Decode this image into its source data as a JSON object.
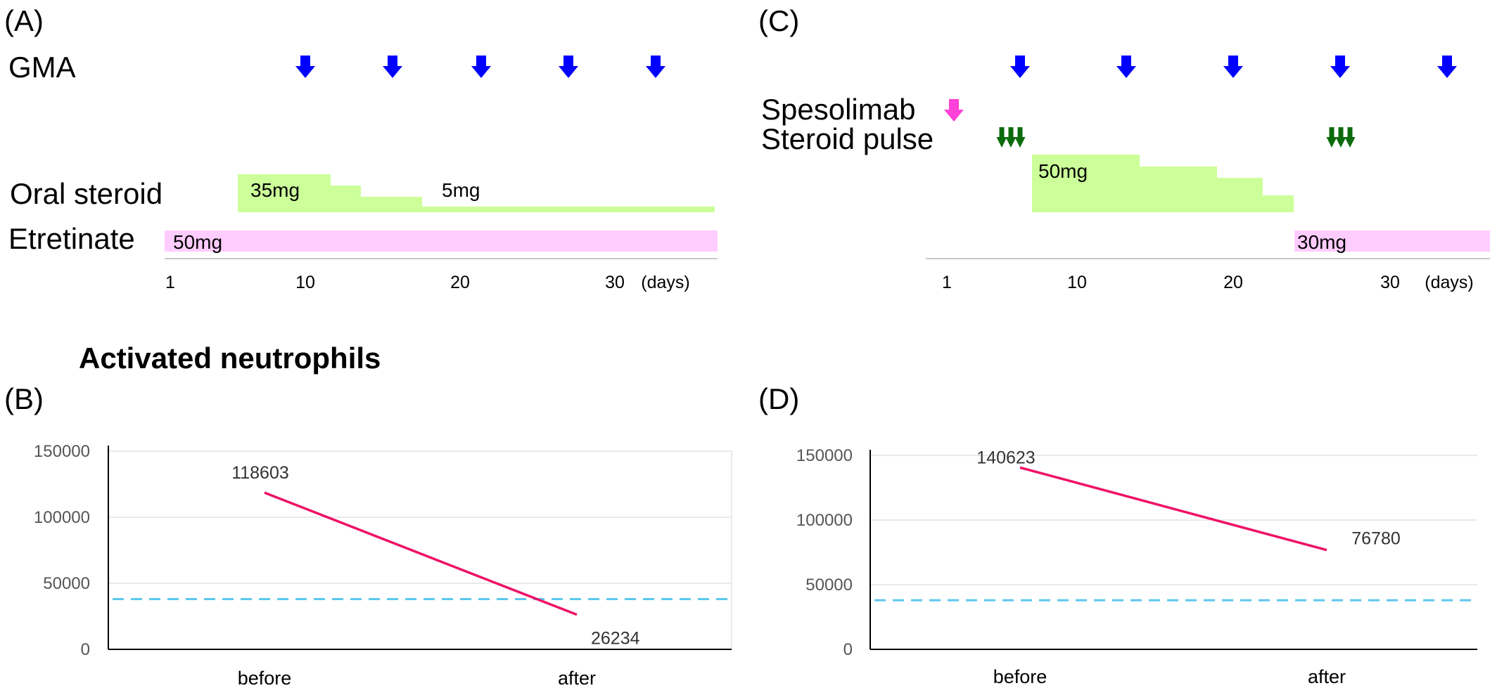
{
  "colors": {
    "gma_arrow": "#0000ff",
    "spesolimab_arrow": "#ff40d9",
    "steroid_pulse_arrow": "#0b6b0b",
    "oral_steroid": "#ccff99",
    "etretinate": "#ffccff",
    "line": "#ee1166",
    "threshold": "#5bc8ee"
  },
  "panel_a": {
    "label": "(A)",
    "gma_label": "GMA",
    "oral_steroid_label": "Oral steroid",
    "etretinate_label": "Etretinate",
    "oral_steroid_dose_1": "35mg",
    "oral_steroid_dose_2": "5mg",
    "etretinate_dose": "50mg",
    "ticks": [
      "1",
      "10",
      "20",
      "30"
    ],
    "unit": "(days)"
  },
  "panel_c": {
    "label": "(C)",
    "spesolimab_label": "Spesolimab",
    "steroid_pulse_label": "Steroid pulse",
    "oral_steroid_dose": "50mg",
    "etretinate_dose": "30mg",
    "ticks": [
      "1",
      "10",
      "20",
      "30"
    ],
    "unit": "(days)"
  },
  "section_title": "Activated neutrophils",
  "panel_b": {
    "label": "(B)"
  },
  "panel_d": {
    "label": "(D)"
  },
  "chart_data": [
    {
      "type": "line",
      "panel": "(B)",
      "categories": [
        "before",
        "after"
      ],
      "values": [
        118603,
        26234
      ],
      "ylim": [
        0,
        150000
      ],
      "yticks": [
        "0",
        "50000",
        "100000",
        "150000"
      ],
      "grid": true,
      "threshold": 38000
    },
    {
      "type": "line",
      "panel": "(D)",
      "categories": [
        "before",
        "after"
      ],
      "values": [
        140623,
        76780
      ],
      "ylim": [
        0,
        150000
      ],
      "yticks": [
        "0",
        "50000",
        "100000",
        "150000"
      ],
      "grid": true,
      "threshold": 38000
    }
  ]
}
